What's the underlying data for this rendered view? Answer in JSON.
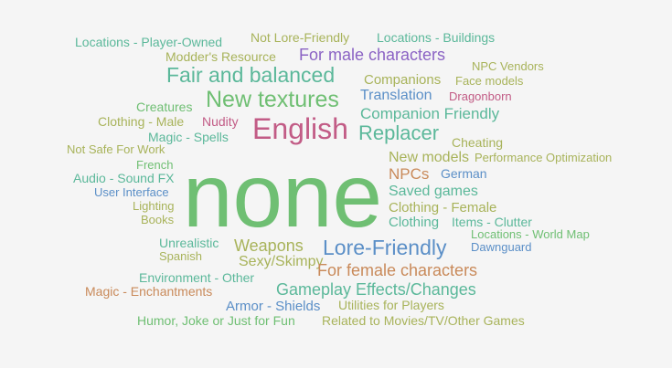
{
  "words": [
    {
      "text": "Locations - Player-Owned",
      "color": "#5bb89a"
    },
    {
      "text": "Not Lore-Friendly",
      "color": "#a8b35a"
    },
    {
      "text": "Locations - Buildings",
      "color": "#5bb89a"
    },
    {
      "text": "Modder's Resource",
      "color": "#a8b35a"
    },
    {
      "text": "For male characters",
      "color": "#8b63c4"
    },
    {
      "text": "NPC Vendors",
      "color": "#a8b35a"
    },
    {
      "text": "Fair and balanced",
      "color": "#5bb89a"
    },
    {
      "text": "Companions",
      "color": "#a8b35a"
    },
    {
      "text": "Face models",
      "color": "#a8b35a"
    },
    {
      "text": "Translation",
      "color": "#5b8fc7"
    },
    {
      "text": "Dragonborn",
      "color": "#c25c86"
    },
    {
      "text": "New textures",
      "color": "#6fbf73"
    },
    {
      "text": "Creatures",
      "color": "#6fbf73"
    },
    {
      "text": "Companion Friendly",
      "color": "#5bb89a"
    },
    {
      "text": "Clothing - Male",
      "color": "#a8b35a"
    },
    {
      "text": "Nudity",
      "color": "#c25c86"
    },
    {
      "text": "English",
      "color": "#c25c86"
    },
    {
      "text": "Magic - Spells",
      "color": "#5bb89a"
    },
    {
      "text": "Replacer",
      "color": "#5bb89a"
    },
    {
      "text": "Cheating",
      "color": "#a8b35a"
    },
    {
      "text": "Not Safe For Work",
      "color": "#a8b35a"
    },
    {
      "text": "New models",
      "color": "#a8b35a"
    },
    {
      "text": "Performance Optimization",
      "color": "#a8b35a"
    },
    {
      "text": "French",
      "color": "#6fbf73"
    },
    {
      "text": "NPCs",
      "color": "#c98a5a"
    },
    {
      "text": "German",
      "color": "#5b8fc7"
    },
    {
      "text": "Audio - Sound FX",
      "color": "#5bb89a"
    },
    {
      "text": "User Interface",
      "color": "#5b8fc7"
    },
    {
      "text": "Saved games",
      "color": "#5bb89a"
    },
    {
      "text": "none",
      "color": "#6fbf73"
    },
    {
      "text": "Lighting",
      "color": "#a8b35a"
    },
    {
      "text": "Clothing - Female",
      "color": "#a8b35a"
    },
    {
      "text": "Books",
      "color": "#a8b35a"
    },
    {
      "text": "Clothing",
      "color": "#5bb89a"
    },
    {
      "text": "Items - Clutter",
      "color": "#5bb89a"
    },
    {
      "text": "Locations - World Map",
      "color": "#6fbf73"
    },
    {
      "text": "Unrealistic",
      "color": "#5bb89a"
    },
    {
      "text": "Weapons",
      "color": "#a8b35a"
    },
    {
      "text": "Lore-Friendly",
      "color": "#5b8fc7"
    },
    {
      "text": "Dawnguard",
      "color": "#5b8fc7"
    },
    {
      "text": "Spanish",
      "color": "#a8b35a"
    },
    {
      "text": "Sexy/Skimpy",
      "color": "#a8b35a"
    },
    {
      "text": "For female characters",
      "color": "#c98a5a"
    },
    {
      "text": "Environment - Other",
      "color": "#5bb89a"
    },
    {
      "text": "Magic - Enchantments",
      "color": "#c98a5a"
    },
    {
      "text": "Gameplay Effects/Changes",
      "color": "#5bb89a"
    },
    {
      "text": "Armor - Shields",
      "color": "#5b8fc7"
    },
    {
      "text": "Utilities for Players",
      "color": "#a8b35a"
    },
    {
      "text": "Humor, Joke or Just for Fun",
      "color": "#6fbf73"
    },
    {
      "text": "Related to Movies/TV/Other Games",
      "color": "#a8b35a"
    }
  ]
}
